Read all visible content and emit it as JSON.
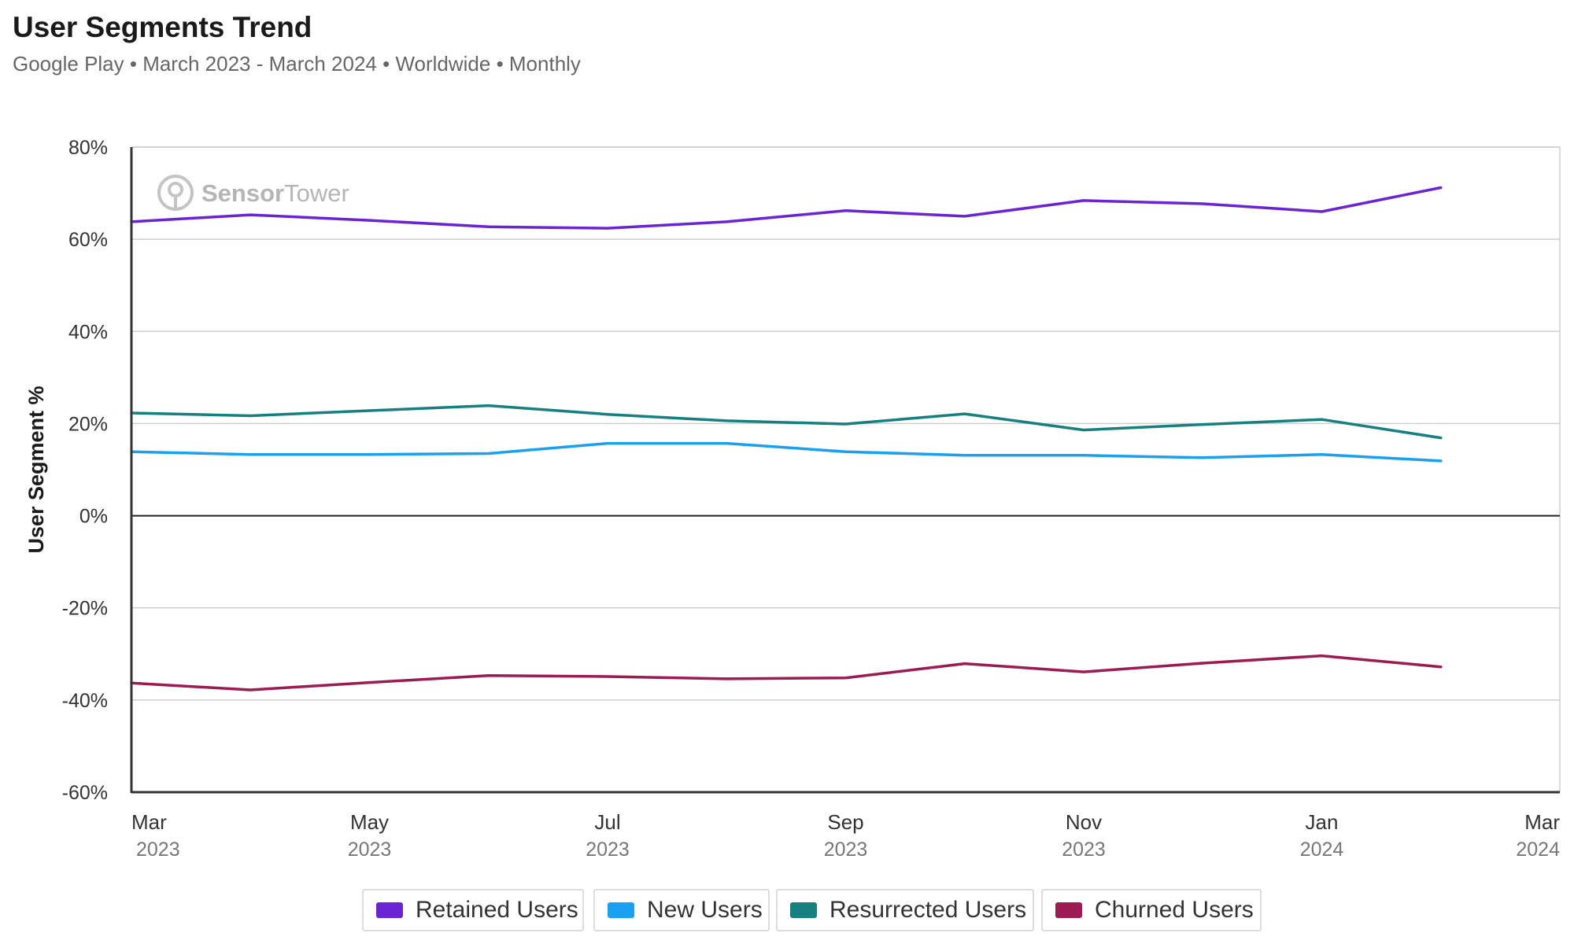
{
  "header": {
    "title": "User Segments Trend",
    "subtitle": "Google Play • March 2023 - March 2024 • Worldwide • Monthly"
  },
  "watermark": {
    "brand_bold": "Sensor",
    "brand_light": "Tower"
  },
  "chart_data": {
    "type": "line",
    "ylabel": "User Segment %",
    "xlabel": "",
    "ylim": [
      -60,
      80
    ],
    "yticks": [
      80,
      60,
      40,
      20,
      0,
      -20,
      -40,
      -60
    ],
    "ytick_labels": [
      "80%",
      "60%",
      "40%",
      "20%",
      "0%",
      "-20%",
      "-40%",
      "-60%"
    ],
    "x_range": [
      "2023-03",
      "2024-03"
    ],
    "xticks": [
      {
        "x": "2023-03",
        "month": "Mar",
        "year": "2023"
      },
      {
        "x": "2023-05",
        "month": "May",
        "year": "2023"
      },
      {
        "x": "2023-07",
        "month": "Jul",
        "year": "2023"
      },
      {
        "x": "2023-09",
        "month": "Sep",
        "year": "2023"
      },
      {
        "x": "2023-11",
        "month": "Nov",
        "year": "2023"
      },
      {
        "x": "2024-01",
        "month": "Jan",
        "year": "2024"
      },
      {
        "x": "2024-03",
        "month": "Mar",
        "year": "2024"
      }
    ],
    "x": [
      "2023-03",
      "2023-04",
      "2023-05",
      "2023-06",
      "2023-07",
      "2023-08",
      "2023-09",
      "2023-10",
      "2023-11",
      "2023-12",
      "2024-01",
      "2024-02"
    ],
    "grid": true,
    "legend_position": "bottom-center",
    "series": [
      {
        "name": "Retained Users",
        "color": "#6a24d4",
        "values": [
          63.8,
          65.3,
          64.1,
          62.7,
          62.4,
          63.8,
          66.2,
          65.0,
          68.4,
          67.7,
          66.0,
          71.2
        ]
      },
      {
        "name": "New Users",
        "color": "#1aa0f0",
        "values": [
          13.9,
          13.3,
          13.3,
          13.5,
          15.7,
          15.7,
          13.9,
          13.1,
          13.1,
          12.6,
          13.3,
          11.9
        ]
      },
      {
        "name": "Resurrected Users",
        "color": "#15807f",
        "values": [
          22.3,
          21.7,
          22.8,
          23.9,
          22.0,
          20.6,
          19.9,
          22.1,
          18.6,
          19.8,
          20.9,
          16.9
        ]
      },
      {
        "name": "Churned Users",
        "color": "#9b1b52",
        "values": [
          -36.3,
          -37.8,
          -36.2,
          -34.7,
          -34.9,
          -35.4,
          -35.2,
          -32.1,
          -33.9,
          -32.0,
          -30.4,
          -32.8
        ]
      }
    ]
  }
}
